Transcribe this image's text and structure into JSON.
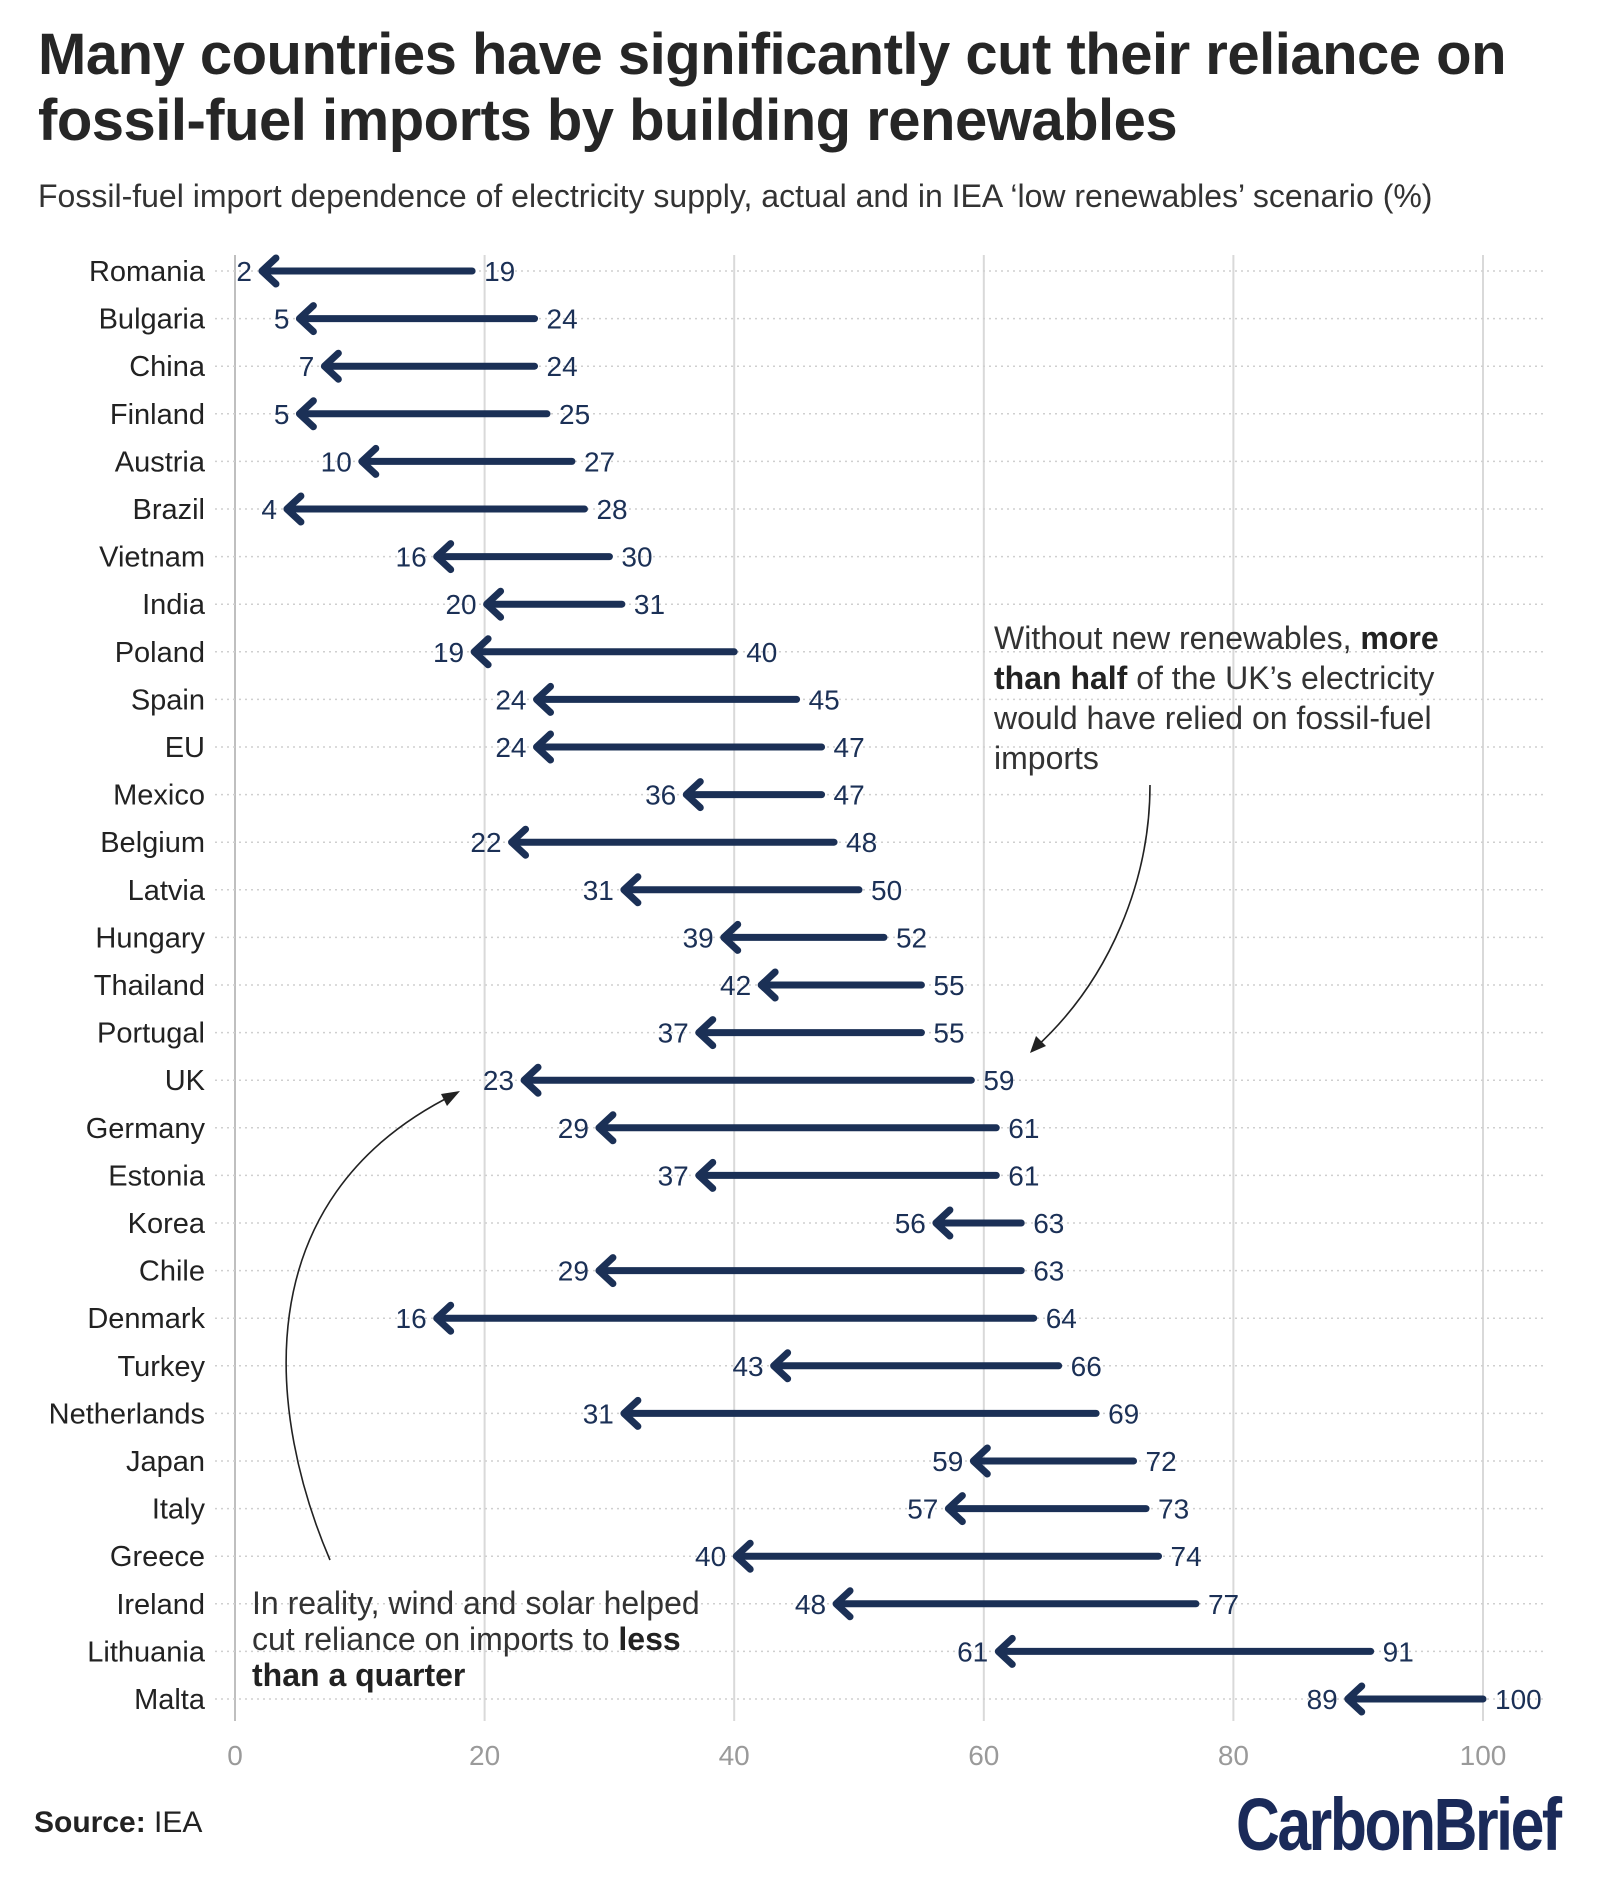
{
  "header": {
    "title": "Many countries have significantly cut their reliance on fossil-fuel imports by building renewables",
    "subtitle": "Fossil-fuel import dependence of electricity supply, actual and in IEA ‘low renewables’ scenario (%)"
  },
  "annotations": {
    "uk_note": {
      "pre": "Without new renewables, ",
      "bold": "more than half",
      "post": " of the UK’s electricity would have relied on fossil-fuel imports"
    },
    "reality_note": {
      "pre": "In reality, wind and solar helped cut reliance on imports to ",
      "bold": "less than a quarter",
      "post": ""
    }
  },
  "footer": {
    "source_label": "Source:",
    "source_value": "IEA",
    "brand": "CarbonBrief"
  },
  "colors": {
    "arrow": "#1b3056",
    "grid": "#d9d9d9",
    "text": "#222222",
    "brand": "#1a2a59"
  },
  "chart_data": {
    "type": "arrow",
    "xlim": [
      0,
      100
    ],
    "xticks": [
      0,
      20,
      40,
      60,
      80,
      100
    ],
    "grid": true,
    "rows": [
      {
        "country": "Romania",
        "scenario": 19,
        "actual": 2
      },
      {
        "country": "Bulgaria",
        "scenario": 24,
        "actual": 5
      },
      {
        "country": "China",
        "scenario": 24,
        "actual": 7
      },
      {
        "country": "Finland",
        "scenario": 25,
        "actual": 5
      },
      {
        "country": "Austria",
        "scenario": 27,
        "actual": 10
      },
      {
        "country": "Brazil",
        "scenario": 28,
        "actual": 4
      },
      {
        "country": "Vietnam",
        "scenario": 30,
        "actual": 16
      },
      {
        "country": "India",
        "scenario": 31,
        "actual": 20
      },
      {
        "country": "Poland",
        "scenario": 40,
        "actual": 19
      },
      {
        "country": "Spain",
        "scenario": 45,
        "actual": 24
      },
      {
        "country": "EU",
        "scenario": 47,
        "actual": 24
      },
      {
        "country": "Mexico",
        "scenario": 47,
        "actual": 36
      },
      {
        "country": "Belgium",
        "scenario": 48,
        "actual": 22
      },
      {
        "country": "Latvia",
        "scenario": 50,
        "actual": 31
      },
      {
        "country": "Hungary",
        "scenario": 52,
        "actual": 39
      },
      {
        "country": "Thailand",
        "scenario": 55,
        "actual": 42
      },
      {
        "country": "Portugal",
        "scenario": 55,
        "actual": 37
      },
      {
        "country": "UK",
        "scenario": 59,
        "actual": 23
      },
      {
        "country": "Germany",
        "scenario": 61,
        "actual": 29
      },
      {
        "country": "Estonia",
        "scenario": 61,
        "actual": 37
      },
      {
        "country": "Korea",
        "scenario": 63,
        "actual": 56
      },
      {
        "country": "Chile",
        "scenario": 63,
        "actual": 29
      },
      {
        "country": "Denmark",
        "scenario": 64,
        "actual": 16
      },
      {
        "country": "Turkey",
        "scenario": 66,
        "actual": 43
      },
      {
        "country": "Netherlands",
        "scenario": 69,
        "actual": 31
      },
      {
        "country": "Japan",
        "scenario": 72,
        "actual": 59
      },
      {
        "country": "Italy",
        "scenario": 73,
        "actual": 57
      },
      {
        "country": "Greece",
        "scenario": 74,
        "actual": 40
      },
      {
        "country": "Ireland",
        "scenario": 77,
        "actual": 48
      },
      {
        "country": "Lithuania",
        "scenario": 91,
        "actual": 61
      },
      {
        "country": "Malta",
        "scenario": 100,
        "actual": 89
      }
    ]
  }
}
